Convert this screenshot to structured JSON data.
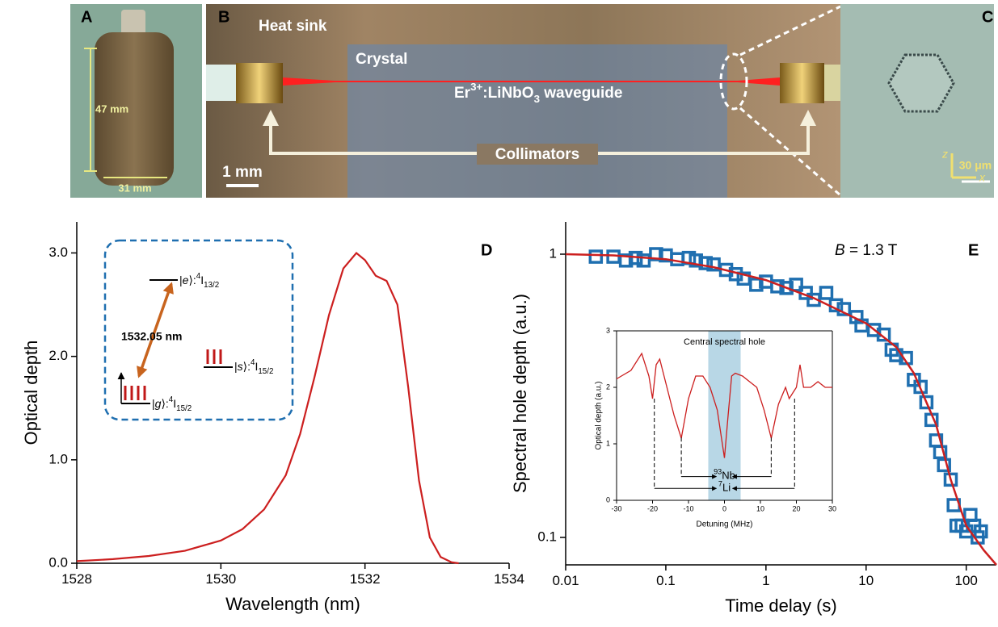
{
  "photos": {
    "A": {
      "letter": "A",
      "height_label": "47 mm",
      "width_label": "31 mm"
    },
    "B": {
      "letter": "B",
      "heat_sink": "Heat sink",
      "crystal": "Crystal",
      "waveguide": [
        "Er",
        "3+",
        ":LiNbO",
        "3",
        " waveguide"
      ],
      "collimators": "Collimators",
      "scale_bar": "1 mm"
    },
    "C": {
      "letter": "C",
      "axis_z": "z",
      "axis_x": "x",
      "scale_bar": "30 μm"
    }
  },
  "chart_data": [
    {
      "type": "line",
      "panel": "D",
      "x_label": "Wavelength (nm)",
      "y_label": "Optical depth",
      "xlim": [
        1528,
        1534
      ],
      "ylim": [
        0,
        3.3
      ],
      "xticks": [
        1528,
        1530,
        1532,
        1534
      ],
      "yticks": [
        {
          "value": 0,
          "label": "0.0"
        },
        {
          "value": 1,
          "label": "1.0"
        },
        {
          "value": 2,
          "label": "2.0"
        },
        {
          "value": 3,
          "label": "3.0"
        }
      ],
      "series": [
        {
          "color": "#cc1f1f",
          "x": [
            1528,
            1528.5,
            1529,
            1529.5,
            1530,
            1530.3,
            1530.6,
            1530.9,
            1531.1,
            1531.3,
            1531.5,
            1531.7,
            1531.88,
            1532.0,
            1532.15,
            1532.3,
            1532.45,
            1532.6,
            1532.75,
            1532.9,
            1533.05,
            1533.2,
            1533.3
          ],
          "values": [
            0.02,
            0.04,
            0.07,
            0.12,
            0.22,
            0.33,
            0.52,
            0.85,
            1.25,
            1.8,
            2.4,
            2.85,
            3.0,
            2.93,
            2.78,
            2.73,
            2.5,
            1.7,
            0.8,
            0.25,
            0.06,
            0.01,
            0
          ]
        }
      ],
      "level_diagram": {
        "excited": [
          "|",
          "e",
          "⟩:",
          "4",
          "I",
          "13/2"
        ],
        "transition": "1532.05 nm",
        "storage": [
          "|",
          "s",
          "⟩:",
          "4",
          "I",
          "15/2"
        ],
        "ground": [
          "|",
          "g",
          "⟩:",
          "4",
          "I",
          "15/2"
        ]
      }
    },
    {
      "type": "scatter",
      "panel": "E",
      "x_label": "Time delay (s)",
      "y_label": "Spectral hole depth (a.u.)",
      "xscale": "log",
      "yscale": "log",
      "xlim": [
        0.01,
        200
      ],
      "ylim": [
        0.08,
        1.3
      ],
      "xticks": [
        0.01,
        0.1,
        1,
        10,
        100
      ],
      "yticks": [
        0.1,
        1
      ],
      "annotation": [
        "B",
        " = 1.3 T"
      ],
      "series": [
        {
          "mode": "markers",
          "color": "#1f6fb0",
          "x": [
            0.02,
            0.03,
            0.04,
            0.05,
            0.06,
            0.08,
            0.1,
            0.13,
            0.17,
            0.2,
            0.25,
            0.3,
            0.4,
            0.5,
            0.6,
            0.8,
            1,
            1.3,
            1.6,
            2,
            2.5,
            3,
            4,
            5,
            6,
            8,
            9,
            12,
            15,
            18,
            20,
            25,
            30,
            35,
            40,
            45,
            50,
            55,
            60,
            70,
            75,
            80,
            90,
            100,
            110,
            120,
            130,
            140
          ],
          "values": [
            0.98,
            0.98,
            0.95,
            0.97,
            0.95,
            1.0,
            0.99,
            0.96,
            0.97,
            0.95,
            0.93,
            0.92,
            0.88,
            0.85,
            0.82,
            0.78,
            0.8,
            0.77,
            0.76,
            0.78,
            0.73,
            0.69,
            0.73,
            0.66,
            0.64,
            0.6,
            0.56,
            0.54,
            0.52,
            0.46,
            0.44,
            0.43,
            0.36,
            0.34,
            0.3,
            0.26,
            0.22,
            0.2,
            0.18,
            0.16,
            0.13,
            0.11,
            0.11,
            0.105,
            0.12,
            0.11,
            0.1,
            0.105
          ]
        },
        {
          "mode": "line",
          "color": "#cc1f1f",
          "x": [
            0.01,
            0.03,
            0.1,
            0.3,
            1,
            3,
            10,
            20,
            30,
            50,
            70,
            100,
            150,
            200
          ],
          "values": [
            1.0,
            0.99,
            0.96,
            0.9,
            0.81,
            0.7,
            0.57,
            0.47,
            0.38,
            0.25,
            0.16,
            0.11,
            0.09,
            0.08
          ]
        }
      ]
    },
    {
      "type": "line",
      "title": "Central spectral hole",
      "x_label": "Detuning (MHz)",
      "y_label": "Optical depth (a.u.)",
      "xlim": [
        -30,
        30
      ],
      "ylim": [
        0,
        3
      ],
      "xticks": [
        -30,
        -20,
        -10,
        0,
        10,
        20,
        30
      ],
      "yticks": [
        0,
        1,
        2,
        3
      ],
      "shaded_region": [
        -4.5,
        4.5
      ],
      "shaded_color": "#b8d7e6",
      "series": [
        {
          "color": "#cc1f1f",
          "x": [
            -30,
            -26,
            -23,
            -21,
            -20,
            -19,
            -18,
            -16,
            -14,
            -12,
            -10,
            -8,
            -6,
            -4,
            -2,
            0,
            1,
            2,
            3,
            5,
            7,
            9,
            11,
            13,
            15,
            17,
            18,
            19,
            20,
            21,
            22,
            24,
            26,
            28,
            30
          ],
          "values": [
            2.15,
            2.3,
            2.6,
            2.2,
            1.8,
            2.4,
            2.5,
            2.0,
            1.5,
            1.1,
            1.8,
            2.2,
            2.2,
            2.0,
            1.6,
            0.75,
            1.5,
            2.2,
            2.25,
            2.2,
            2.1,
            2.0,
            1.6,
            1.1,
            1.7,
            2.0,
            1.8,
            1.9,
            2.0,
            2.4,
            2.0,
            2.0,
            2.1,
            2.0,
            2.0
          ]
        }
      ],
      "hyperfine_lines": [
        {
          "label": [
            "93",
            "Nb"
          ],
          "positions": [
            -12,
            13
          ]
        },
        {
          "label": [
            "7",
            "Li"
          ],
          "positions": [
            -19.5,
            19.5
          ]
        }
      ]
    }
  ]
}
